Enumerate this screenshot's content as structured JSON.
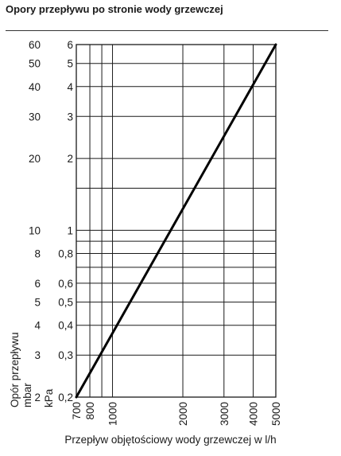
{
  "title": "Opory przepływu po stronie wody grzewczej",
  "chart_data": {
    "type": "line",
    "title": "Opory przepływu po stronie wody grzewczej",
    "xlabel": "Przepływ objętościowy wody grzewczej w l/h",
    "ylabel": [
      "Opór przepływu",
      "mbar",
      "kPa"
    ],
    "xscale": "log",
    "yscale": "log",
    "xlim": [
      700,
      5000
    ],
    "ylim_kpa": [
      0.2,
      6
    ],
    "ylim_mbar": [
      2,
      60
    ],
    "x_ticks": [
      "700",
      "800",
      "1000",
      "2000",
      "3000",
      "4000",
      "5000"
    ],
    "x_ticks_values": [
      700,
      800,
      1000,
      2000,
      3000,
      4000,
      5000
    ],
    "x_grid": [
      700,
      800,
      900,
      1000,
      2000,
      3000,
      4000,
      5000
    ],
    "y_ticks_kpa": [
      "0,2",
      "0,3",
      "0,4",
      "0,5",
      "0,6",
      "0,8",
      "1",
      "2",
      "3",
      "4",
      "5",
      "6"
    ],
    "y_ticks_mbar": [
      "2",
      "3",
      "4",
      "5",
      "6",
      "8",
      "10",
      "20",
      "30",
      "40",
      "50",
      "60"
    ],
    "y_ticks_values_kpa": [
      0.2,
      0.3,
      0.4,
      0.5,
      0.6,
      0.8,
      1,
      2,
      3,
      4,
      5,
      6
    ],
    "y_grid_kpa": [
      0.2,
      0.3,
      0.4,
      0.5,
      0.6,
      0.7,
      0.8,
      0.9,
      1,
      1.5,
      2,
      3,
      4,
      5,
      6
    ],
    "grid": true,
    "series": [
      {
        "x": [
          700,
          5000
        ],
        "y": [
          0.2,
          6
        ],
        "color": "#000000"
      }
    ],
    "colors": {
      "line": "#000000",
      "grid": "#1a1a1a",
      "text": "#1a1a1a"
    }
  }
}
